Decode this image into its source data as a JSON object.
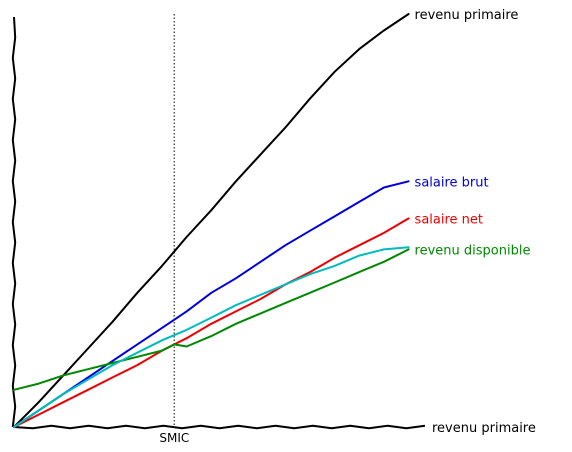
{
  "chart_data": {
    "type": "line",
    "title": "",
    "xlabel": "",
    "ylabel": "",
    "grid": false,
    "legend": "none",
    "xlim": [
      0,
      100
    ],
    "ylim": [
      0,
      100
    ],
    "vline": {
      "x": 39,
      "label": "SMIC",
      "color": "#555555"
    },
    "series": [
      {
        "name": "revenu primaire",
        "color": "#000000",
        "x": [
          0,
          6,
          12,
          18,
          24,
          30,
          36,
          42,
          48,
          54,
          60,
          66,
          72,
          78,
          84,
          90,
          96
        ],
        "y": [
          0,
          6,
          12.5,
          19,
          25.5,
          32.5,
          39,
          46,
          52.5,
          59.5,
          66,
          72.5,
          79.5,
          86,
          91.5,
          96,
          100
        ]
      },
      {
        "name": "salaire brut",
        "color": "#0000dd",
        "x": [
          0,
          6,
          12,
          18,
          24,
          30,
          36,
          42,
          48,
          54,
          60,
          66,
          72,
          78,
          84,
          90,
          96
        ],
        "y": [
          0,
          4,
          8,
          12,
          16,
          20,
          24,
          28,
          32.5,
          36,
          40,
          44,
          47.5,
          51,
          54.5,
          58,
          59.5
        ]
      },
      {
        "name": "salaire net",
        "color": "#ee0000",
        "x": [
          0,
          6,
          12,
          18,
          24,
          30,
          36,
          42,
          48,
          54,
          60,
          66,
          72,
          78,
          84,
          90,
          96
        ],
        "y": [
          0,
          3,
          6,
          9,
          12,
          15,
          18.5,
          21.5,
          25,
          28,
          31,
          34.5,
          37.5,
          41,
          44,
          47,
          50.5
        ]
      },
      {
        "name": "revenu disponible",
        "color": "#008800",
        "x": [
          0,
          6,
          12,
          18,
          24,
          30,
          36,
          39,
          42,
          48,
          54,
          60,
          66,
          72,
          78,
          84,
          90,
          96
        ],
        "y": [
          9,
          10.5,
          12.5,
          14,
          15.5,
          17,
          18.5,
          20,
          19.5,
          22,
          25,
          27.5,
          30,
          32.5,
          35,
          37.5,
          40,
          43
        ]
      },
      {
        "name": "",
        "color": "#00bbbb",
        "x": [
          0,
          6,
          12,
          18,
          24,
          30,
          36,
          42,
          48,
          54,
          60,
          66,
          72,
          78,
          84,
          90,
          96
        ],
        "y": [
          0,
          4,
          8,
          11.5,
          15,
          18,
          21,
          23.5,
          26.5,
          29.5,
          32,
          34.5,
          37,
          39,
          41.5,
          43,
          43.5
        ]
      }
    ],
    "bottom_label": "revenu primaire"
  }
}
